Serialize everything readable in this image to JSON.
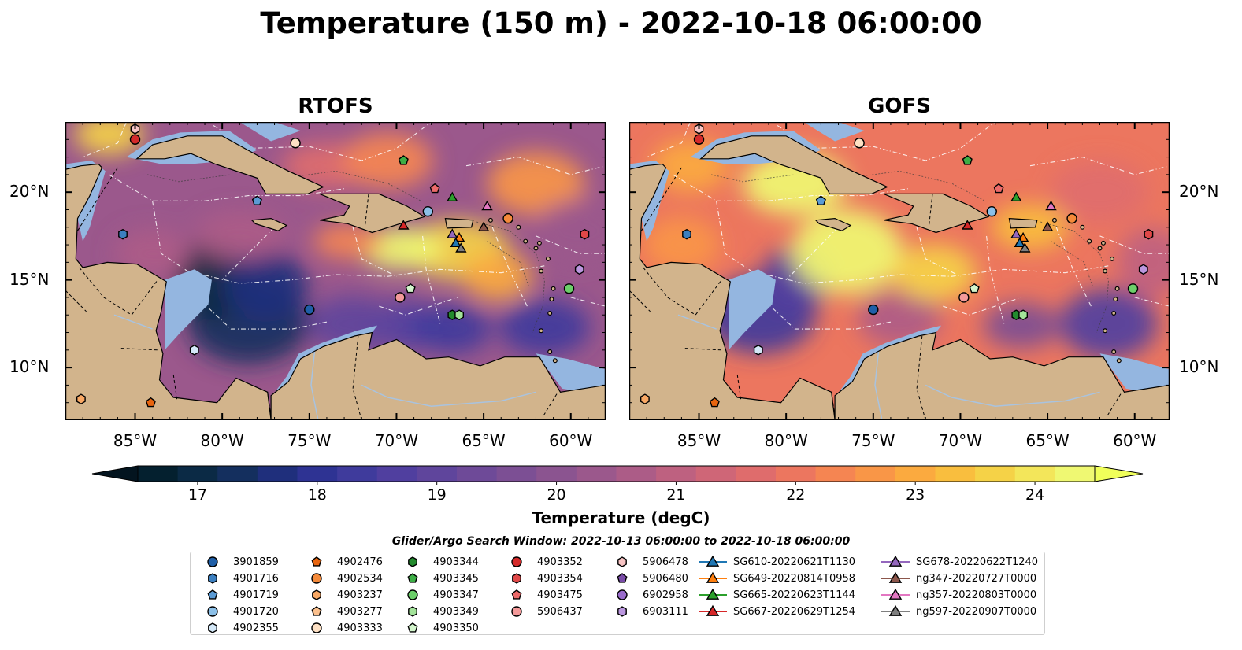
{
  "title": "Temperature (150 m) - 2022-10-18 06:00:00",
  "panels": [
    {
      "name": "RTOFS",
      "scheme": "rtofs"
    },
    {
      "name": "GOFS",
      "scheme": "gofs"
    }
  ],
  "axes": {
    "lon_ticks": [
      "85°W",
      "80°W",
      "75°W",
      "70°W",
      "65°W",
      "60°W"
    ],
    "lat_ticks": [
      "20°N",
      "15°N",
      "10°N"
    ],
    "lon_range": [
      -89,
      -58
    ],
    "lat_range": [
      7,
      24
    ]
  },
  "colorbar": {
    "label": "Temperature (degC)",
    "ticks": [
      "17",
      "18",
      "19",
      "20",
      "21",
      "22",
      "23",
      "24"
    ],
    "range": [
      16.5,
      24.5
    ],
    "colors": [
      "#04202f",
      "#0b2a45",
      "#142f5e",
      "#1f2f7c",
      "#2e3393",
      "#3f3b9c",
      "#503f9f",
      "#5f459c",
      "#6e4a98",
      "#7c4f94",
      "#8b5490",
      "#9b588c",
      "#ac5c87",
      "#be6180",
      "#cf6677",
      "#df6c6c",
      "#ec765f",
      "#f58552",
      "#f99647",
      "#fbaa3f",
      "#f9be3e",
      "#f5d247",
      "#f3e65a",
      "#eff872"
    ],
    "extend": "both"
  },
  "legend": {
    "title": "Glider/Argo Search Window: 2022-10-13 06:00:00 to 2022-10-18 06:00:00",
    "columns": [
      [
        {
          "label": "3901859",
          "marker": "circle",
          "color": "#1f5fa8"
        },
        {
          "label": "4901716",
          "marker": "hexagon",
          "color": "#3b7fc0"
        },
        {
          "label": "4901719",
          "marker": "pentagon",
          "color": "#5b9bd5"
        },
        {
          "label": "4901720",
          "marker": "circle",
          "color": "#8cc0e8"
        },
        {
          "label": "4902355",
          "marker": "hexagon",
          "color": "#d4e8f8"
        }
      ],
      [
        {
          "label": "4902476",
          "marker": "pentagon",
          "color": "#e8650f"
        },
        {
          "label": "4902534",
          "marker": "circle",
          "color": "#f58a3a"
        },
        {
          "label": "4903237",
          "marker": "hexagon",
          "color": "#f9a864"
        },
        {
          "label": "4903277",
          "marker": "pentagon",
          "color": "#fbc08d"
        },
        {
          "label": "4903333",
          "marker": "circle",
          "color": "#fde0c4"
        }
      ],
      [
        {
          "label": "4903344",
          "marker": "hexagon",
          "color": "#238b2e"
        },
        {
          "label": "4903345",
          "marker": "pentagon",
          "color": "#3dae45"
        },
        {
          "label": "4903347",
          "marker": "circle",
          "color": "#6ccf6a"
        },
        {
          "label": "4903349",
          "marker": "hexagon",
          "color": "#a3e39a"
        },
        {
          "label": "4903350",
          "marker": "pentagon",
          "color": "#d3f5cc"
        }
      ],
      [
        {
          "label": "4903352",
          "marker": "circle",
          "color": "#d42a2a"
        },
        {
          "label": "4903354",
          "marker": "hexagon",
          "color": "#e04848"
        },
        {
          "label": "4903475",
          "marker": "pentagon",
          "color": "#ec6a6a"
        },
        {
          "label": "5906437",
          "marker": "circle",
          "color": "#f49a9a"
        }
      ],
      [
        {
          "label": "5906478",
          "marker": "hexagon",
          "color": "#f8c4c4"
        },
        {
          "label": "5906480",
          "marker": "pentagon",
          "color": "#7a4ca8"
        },
        {
          "label": "6902958",
          "marker": "circle",
          "color": "#9a6ccc"
        },
        {
          "label": "6903111",
          "marker": "hexagon",
          "color": "#bb97df"
        }
      ],
      [
        {
          "label": "SG610-20220621T1130",
          "marker": "triangle-line",
          "color": "#1f77b4"
        },
        {
          "label": "SG649-20220814T0958",
          "marker": "triangle-line",
          "color": "#ff7f0e"
        },
        {
          "label": "SG665-20220623T1144",
          "marker": "triangle-line",
          "color": "#2ca02c"
        },
        {
          "label": "SG667-20220629T1254",
          "marker": "triangle-line",
          "color": "#d62728"
        }
      ],
      [
        {
          "label": "SG678-20220622T1240",
          "marker": "triangle-line",
          "color": "#9467bd"
        },
        {
          "label": "ng347-20220727T0000",
          "marker": "triangle-line",
          "color": "#8c564b"
        },
        {
          "label": "ng357-20220803T0000",
          "marker": "triangle-line",
          "color": "#e377c2"
        },
        {
          "label": "ng597-20220907T0000",
          "marker": "triangle-line",
          "color": "#7f7f7f"
        }
      ]
    ]
  },
  "markers": [
    {
      "id": "4903352",
      "lon": -85.0,
      "lat": 23.0,
      "marker": "circle",
      "color": "#d42a2a"
    },
    {
      "id": "5906478",
      "lon": -85.0,
      "lat": 23.6,
      "marker": "hexagon",
      "color": "#f8c4c4"
    },
    {
      "id": "4903333",
      "lon": -75.8,
      "lat": 22.8,
      "marker": "circle",
      "color": "#fde0c4"
    },
    {
      "id": "4903345",
      "lon": -69.6,
      "lat": 21.8,
      "marker": "pentagon",
      "color": "#3dae45"
    },
    {
      "id": "4903475",
      "lon": -67.8,
      "lat": 20.2,
      "marker": "pentagon",
      "color": "#ec6a6a"
    },
    {
      "id": "SG665-20220623T1144",
      "lon": -66.8,
      "lat": 19.7,
      "marker": "triangle",
      "color": "#2ca02c"
    },
    {
      "id": "ng357-20220803T0000",
      "lon": -64.8,
      "lat": 19.2,
      "marker": "triangle",
      "color": "#e377c2"
    },
    {
      "id": "4901719",
      "lon": -78.0,
      "lat": 19.5,
      "marker": "pentagon",
      "color": "#5b9bd5"
    },
    {
      "id": "4901720",
      "lon": -68.2,
      "lat": 18.9,
      "marker": "circle",
      "color": "#8cc0e8"
    },
    {
      "id": "4902534",
      "lon": -63.6,
      "lat": 18.5,
      "marker": "circle",
      "color": "#f58a3a"
    },
    {
      "id": "SG667-20220629T1254",
      "lon": -69.6,
      "lat": 18.1,
      "marker": "triangle",
      "color": "#d62728"
    },
    {
      "id": "ng347-20220727T0000",
      "lon": -65.0,
      "lat": 18.0,
      "marker": "triangle",
      "color": "#8c564b"
    },
    {
      "id": "SG678-20220622T1240",
      "lon": -66.8,
      "lat": 17.6,
      "marker": "triangle",
      "color": "#9467bd"
    },
    {
      "id": "SG649-20220814T0958",
      "lon": -66.4,
      "lat": 17.4,
      "marker": "triangle",
      "color": "#ff7f0e"
    },
    {
      "id": "SG610-20220621T1130",
      "lon": -66.6,
      "lat": 17.1,
      "marker": "triangle",
      "color": "#1f77b4"
    },
    {
      "id": "ng597-20220907T0000",
      "lon": -66.3,
      "lat": 16.8,
      "marker": "triangle",
      "color": "#7f7f7f"
    },
    {
      "id": "4901716",
      "lon": -85.7,
      "lat": 17.6,
      "marker": "hexagon",
      "color": "#3b7fc0"
    },
    {
      "id": "4903354",
      "lon": -59.2,
      "lat": 17.6,
      "marker": "hexagon",
      "color": "#e04848"
    },
    {
      "id": "6903111",
      "lon": -59.5,
      "lat": 15.6,
      "marker": "hexagon",
      "color": "#bb97df"
    },
    {
      "id": "4903347",
      "lon": -60.1,
      "lat": 14.5,
      "marker": "circle",
      "color": "#6ccf6a"
    },
    {
      "id": "4903350",
      "lon": -69.2,
      "lat": 14.5,
      "marker": "pentagon",
      "color": "#d3f5cc"
    },
    {
      "id": "5906437",
      "lon": -69.8,
      "lat": 14.0,
      "marker": "circle",
      "color": "#f49a9a"
    },
    {
      "id": "3901859",
      "lon": -75.0,
      "lat": 13.3,
      "marker": "circle",
      "color": "#1f5fa8"
    },
    {
      "id": "4903344",
      "lon": -66.8,
      "lat": 13.0,
      "marker": "hexagon",
      "color": "#238b2e"
    },
    {
      "id": "4903349",
      "lon": -66.4,
      "lat": 13.0,
      "marker": "hexagon",
      "color": "#a3e39a"
    },
    {
      "id": "4902355",
      "lon": -81.6,
      "lat": 11.0,
      "marker": "hexagon",
      "color": "#d4e8f8"
    },
    {
      "id": "4903237",
      "lon": -88.1,
      "lat": 8.2,
      "marker": "hexagon",
      "color": "#f9a864"
    },
    {
      "id": "4902476",
      "lon": -84.1,
      "lat": 8.0,
      "marker": "pentagon",
      "color": "#e8650f"
    }
  ]
}
